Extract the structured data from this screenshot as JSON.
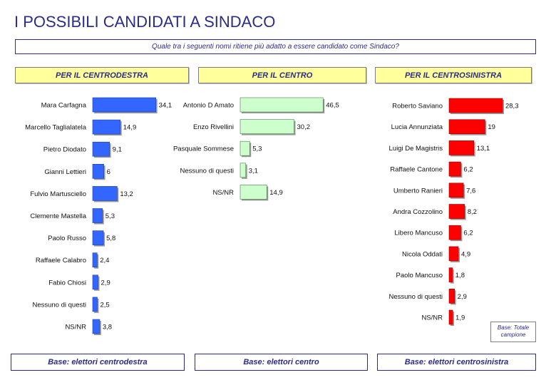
{
  "title": "I POSSIBILI CANDIDATI A SINDACO",
  "question": "Quale tra i seguenti nomi ritiene più adatto a essere candidato come Sindaco?",
  "note": "Base: Totale campione",
  "colors": {
    "centrodestra": "#3366ff",
    "centro": "#ccffcc",
    "centrosinistra": "#ff0000"
  },
  "chart_data": [
    {
      "type": "bar",
      "orientation": "horizontal",
      "title": "PER IL CENTRODESTRA",
      "footer": "Base: elettori centrodestra",
      "categories": [
        "Mara Carfagna",
        "Marcello Taglialatela",
        "Pietro Diodato",
        "Gianni Lettieri",
        "Fulvio Martusciello",
        "Clemente Mastella",
        "Paolo Russo",
        "Raffaele Calabro",
        "Fabio Chiosi",
        "Nessuno di questi",
        "NS/NR"
      ],
      "value_labels": [
        "34,1",
        "14,9",
        "9,1",
        "6",
        "13,2",
        "5,3",
        "5,8",
        "2,4",
        "2,9",
        "2,5",
        "3,8"
      ],
      "values": [
        34.1,
        14.9,
        9.1,
        6,
        13.2,
        5.3,
        5.8,
        2.4,
        2.9,
        2.5,
        3.8
      ]
    },
    {
      "type": "bar",
      "orientation": "horizontal",
      "title": "PER IL CENTRO",
      "footer": "Base: elettori centro",
      "categories": [
        "Antonio D Amato",
        "Enzo Rivellini",
        "Pasquale Sommese",
        "Nessuno di questi",
        "NS/NR"
      ],
      "value_labels": [
        "46,5",
        "30,2",
        "5,3",
        "3,1",
        "14,9"
      ],
      "values": [
        46.5,
        30.2,
        5.3,
        3.1,
        14.9
      ]
    },
    {
      "type": "bar",
      "orientation": "horizontal",
      "title": "PER IL CENTROSINISTRA",
      "footer": "Base: elettori centrosinistra",
      "categories": [
        "Roberto Saviano",
        "Lucia Annunziata",
        "Luigi De Magistris",
        "Raffaele Cantone",
        "Umberto Ranieri",
        "Andra Cozzolino",
        "Libero Mancuso",
        "Nicola Oddati",
        "Paolo Mancuso",
        "Nessuno di questi",
        "NS/NR"
      ],
      "value_labels": [
        "28,3",
        "19",
        "13,1",
        "6,2",
        "7,6",
        "8,2",
        "6,2",
        "4,9",
        "1,8",
        "2,9",
        "1,9"
      ],
      "values": [
        28.3,
        19,
        13.1,
        6.2,
        7.6,
        8.2,
        6.2,
        4.9,
        1.8,
        2.9,
        1.9
      ]
    }
  ]
}
